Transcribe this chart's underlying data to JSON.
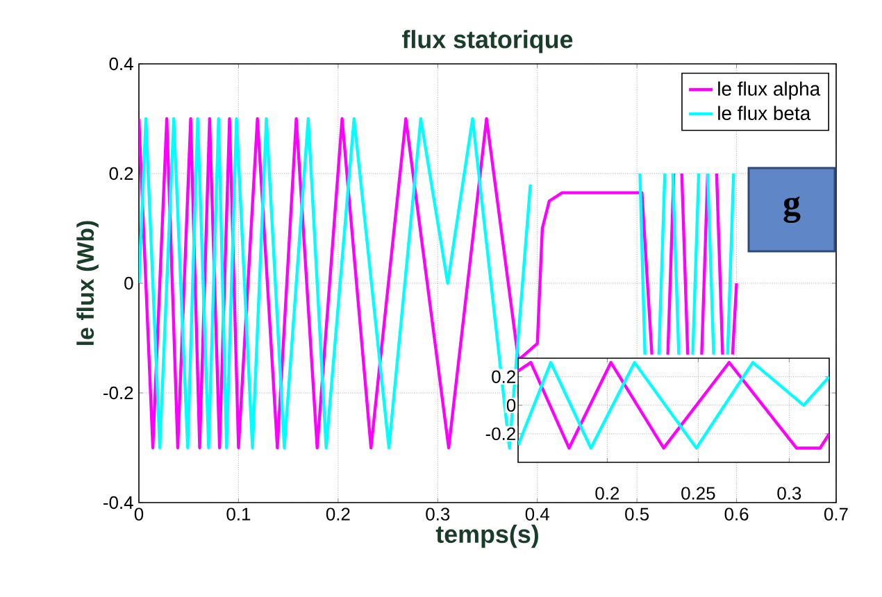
{
  "chart_data": [
    {
      "type": "line",
      "title": "flux statorique",
      "xlabel": "temps(s)",
      "ylabel": "le flux (Wb)",
      "xlim": [
        0,
        0.7
      ],
      "ylim": [
        -0.4,
        0.4
      ],
      "xticks": [
        0,
        0.1,
        0.2,
        0.3,
        0.4,
        0.5,
        0.6,
        0.7
      ],
      "yticks": [
        -0.4,
        -0.2,
        0,
        0.2,
        0.4
      ],
      "grid": true,
      "legend": "top right",
      "annotations": [
        "g"
      ],
      "series": [
        {
          "name": "le flux alpha",
          "color": "#ff00ff",
          "x": [
            0,
            0.014,
            0.028,
            0.039,
            0.052,
            0.061,
            0.071,
            0.081,
            0.091,
            0.1,
            0.119,
            0.139,
            0.158,
            0.179,
            0.204,
            0.233,
            0.268,
            0.311,
            0.349,
            0.381,
            0.4,
            0.405,
            0.412,
            0.425,
            0.505,
            0.515,
            0.523,
            0.531,
            0.537,
            0.541,
            0.545,
            0.551,
            0.558,
            0.565,
            0.571,
            0.575,
            0.58,
            0.586,
            0.591,
            0.596,
            0.6
          ],
          "values": [
            0.3,
            -0.3,
            0.3,
            -0.3,
            0.3,
            -0.3,
            0.3,
            -0.3,
            0.3,
            -0.3,
            0.3,
            -0.3,
            0.3,
            -0.3,
            0.3,
            -0.3,
            0.3,
            -0.3,
            0.3,
            -0.14,
            -0.11,
            0.1,
            0.15,
            0.165,
            0.165,
            -0.13,
            null,
            -0.13,
            0.2,
            null,
            0.2,
            -0.13,
            null,
            -0.13,
            0.2,
            null,
            0.2,
            -0.13,
            null,
            -0.13,
            0
          ]
        },
        {
          "name": "le flux beta",
          "color": "#00ffff",
          "x": [
            0,
            0.007,
            0.021,
            0.035,
            0.049,
            0.059,
            0.07,
            0.08,
            0.088,
            0.098,
            0.114,
            0.128,
            0.146,
            0.17,
            0.188,
            0.216,
            0.251,
            0.283,
            0.31,
            0.335,
            0.372,
            0.393,
            0.45,
            0.503,
            0.508,
            0.515,
            0.522,
            0.528,
            0.532,
            0.536,
            0.542,
            0.549,
            0.556,
            0.562,
            0.566,
            0.571,
            0.577,
            0.584,
            0.591,
            0.597
          ],
          "values": [
            0,
            0.3,
            -0.3,
            0.3,
            -0.3,
            0.3,
            -0.3,
            0.3,
            -0.3,
            0.3,
            -0.3,
            0.3,
            -0.3,
            0.3,
            -0.3,
            0.3,
            -0.3,
            0.3,
            0,
            0.3,
            -0.3,
            0.18,
            null,
            0.2,
            -0.13,
            null,
            -0.13,
            0.2,
            null,
            0.2,
            -0.13,
            null,
            -0.13,
            0.2,
            null,
            0.2,
            -0.13,
            null,
            -0.13,
            0.2
          ]
        }
      ]
    },
    {
      "type": "line",
      "xlim": [
        0.151,
        0.322
      ],
      "ylim": [
        -0.4,
        0.33
      ],
      "xticks": [
        0.2,
        0.25,
        0.3
      ],
      "yticks": [
        -0.2,
        0,
        0.2
      ],
      "grid": true,
      "series": [
        {
          "color": "#ff00ff",
          "x": [
            0.151,
            0.158,
            0.179,
            0.202,
            0.231,
            0.267,
            0.304,
            0.317,
            0.322
          ],
          "values": [
            0.24,
            0.3,
            -0.3,
            0.3,
            -0.3,
            0.3,
            -0.3,
            -0.3,
            -0.2
          ]
        },
        {
          "color": "#00ffff",
          "x": [
            0.151,
            0.169,
            0.191,
            0.215,
            0.249,
            0.28,
            0.308,
            0.322
          ],
          "values": [
            -0.28,
            0.3,
            -0.3,
            0.3,
            -0.3,
            0.3,
            0,
            0.2
          ]
        }
      ]
    }
  ]
}
